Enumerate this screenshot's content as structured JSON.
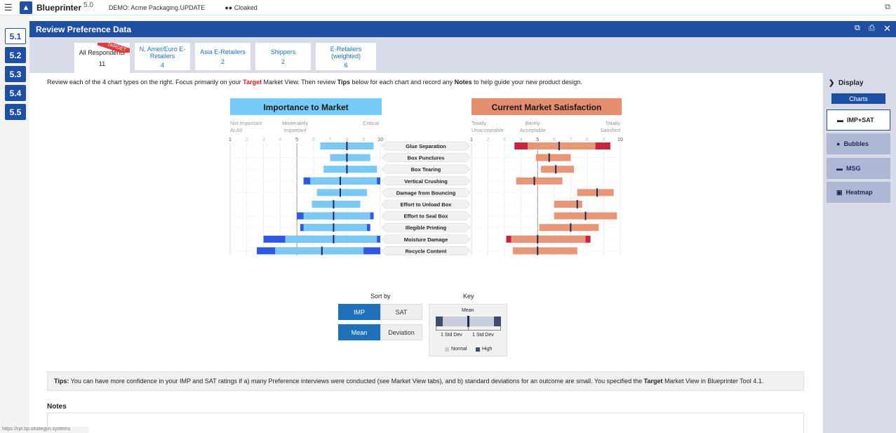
{
  "topbar": {
    "app_name": "Blueprinter",
    "version": "5.0",
    "demo_label": "DEMO: Acme Packaging.UPDATE",
    "cloak_label": "Cloaked"
  },
  "nav": [
    "5.1",
    "5.2",
    "5.3",
    "5.4",
    "5.5"
  ],
  "modal": {
    "title": "Review Preference Data"
  },
  "tabs": [
    {
      "label": "All Respondents",
      "count": "11",
      "badge": "TARGET"
    },
    {
      "label": "N. Amer/Euro E-Retailers",
      "count": "4"
    },
    {
      "label": "Asia E-Retailers",
      "count": "2"
    },
    {
      "label": "Shippers",
      "count": "2"
    },
    {
      "label": "E-Retailers (weighted)",
      "count": "6"
    }
  ],
  "instructions": {
    "p1": "Review each of the 4 chart types on the right. Focus primarily on your ",
    "target": "Target",
    "p2": " Market View. Then review ",
    "tips": "Tips",
    "p3": " below for each chart and record any ",
    "notes": "Notes",
    "p4": " to help guide your new product design."
  },
  "chart_data": {
    "type": "bar",
    "categories": [
      "Glue Separation",
      "Box Punctures",
      "Box Tearing",
      "Vertical Crushing",
      "Damage from Bouncing",
      "Effort to Unload Box",
      "Effort to Seal Box",
      "Illegible Printing",
      "Moisture Damage",
      "Recycle Content"
    ],
    "importance": {
      "title": "Importance to Market",
      "scale_labels": {
        "low": "Not Important At All",
        "mid": "Moderately Important",
        "high": "Critical"
      },
      "ticks": [
        "1",
        "2",
        "3",
        "4",
        "5",
        "6",
        "7",
        "8",
        "9",
        "10"
      ],
      "xlim": [
        1,
        10
      ],
      "mean": [
        8.0,
        8.0,
        8.0,
        7.6,
        7.6,
        7.2,
        7.2,
        7.2,
        7.2,
        6.5
      ],
      "std_low": [
        6.4,
        7.0,
        6.6,
        5.8,
        6.2,
        5.9,
        5.4,
        5.4,
        4.3,
        3.7
      ],
      "std_high": [
        9.6,
        9.4,
        9.8,
        9.8,
        9.2,
        8.8,
        9.4,
        9.2,
        9.8,
        9.0
      ],
      "high_low": [
        null,
        null,
        null,
        5.4,
        null,
        null,
        5.0,
        5.2,
        3.0,
        2.6
      ],
      "high_high": [
        null,
        null,
        null,
        10.0,
        null,
        null,
        9.6,
        9.4,
        10.0,
        10.0
      ]
    },
    "satisfaction": {
      "title": "Current Market Satisfaction",
      "scale_labels": {
        "low": "Totally Unacceptable",
        "mid": "Barely Acceptable",
        "high": "Totally Satisfied"
      },
      "ticks": [
        "1",
        "2",
        "3",
        "4",
        "5",
        "6",
        "7",
        "8",
        "9",
        "10"
      ],
      "xlim": [
        1,
        10
      ],
      "mean": [
        6.3,
        5.7,
        6.1,
        4.8,
        8.6,
        7.4,
        7.9,
        7.0,
        5.0,
        5.0
      ],
      "std_low": [
        4.4,
        4.9,
        5.2,
        3.7,
        7.4,
        6.0,
        6.0,
        5.1,
        3.4,
        3.5
      ],
      "std_high": [
        8.5,
        7.0,
        7.2,
        6.5,
        9.6,
        7.7,
        9.8,
        8.7,
        7.9,
        7.4
      ],
      "high_low": [
        3.6,
        null,
        null,
        null,
        null,
        null,
        null,
        null,
        3.1,
        null
      ],
      "high_high": [
        9.4,
        null,
        null,
        null,
        null,
        null,
        null,
        null,
        8.2,
        null
      ]
    }
  },
  "sort": {
    "label": "Sort by",
    "buttons": [
      {
        "label": "IMP",
        "on": true
      },
      {
        "label": "SAT",
        "on": false
      },
      {
        "label": "Mean",
        "on": true
      },
      {
        "label": "Deviation",
        "on": false
      }
    ]
  },
  "key": {
    "title": "Key",
    "mean": "Mean",
    "std1": "1 Std Dev",
    "std2": "1 Std Dev",
    "normal": "Normal",
    "high": "High"
  },
  "tips": {
    "label": "Tips:",
    "text1": " You can have more confidence in your IMP and SAT ratings if a) many Preference interviews were conducted (see Market View tabs), and b) standard deviations for an outcome are small. You specified the ",
    "target": "Target",
    "text2": " Market View in Blueprinter Tool 4.1."
  },
  "notes": {
    "label": "Notes"
  },
  "display": {
    "label": "Display",
    "charts": "Charts",
    "options": [
      {
        "label": "IMP+SAT",
        "icon": "imp-sat-icon",
        "on": true
      },
      {
        "label": "Bubbles",
        "icon": "bubbles-icon",
        "on": false
      },
      {
        "label": "MSG",
        "icon": "msg-icon",
        "on": false
      },
      {
        "label": "Heatmap",
        "icon": "heatmap-icon",
        "on": false
      }
    ]
  },
  "status_url": "https://rpt.bp.strategyn.systems",
  "colors": {
    "primary": "#1f4fa3",
    "imp_normal": "#7cc8f5",
    "imp_high": "#2f58e0",
    "sat_normal": "#e79677",
    "sat_high": "#c9243f",
    "imp_title": "#77c9f6",
    "sat_title": "#e48e6d"
  }
}
